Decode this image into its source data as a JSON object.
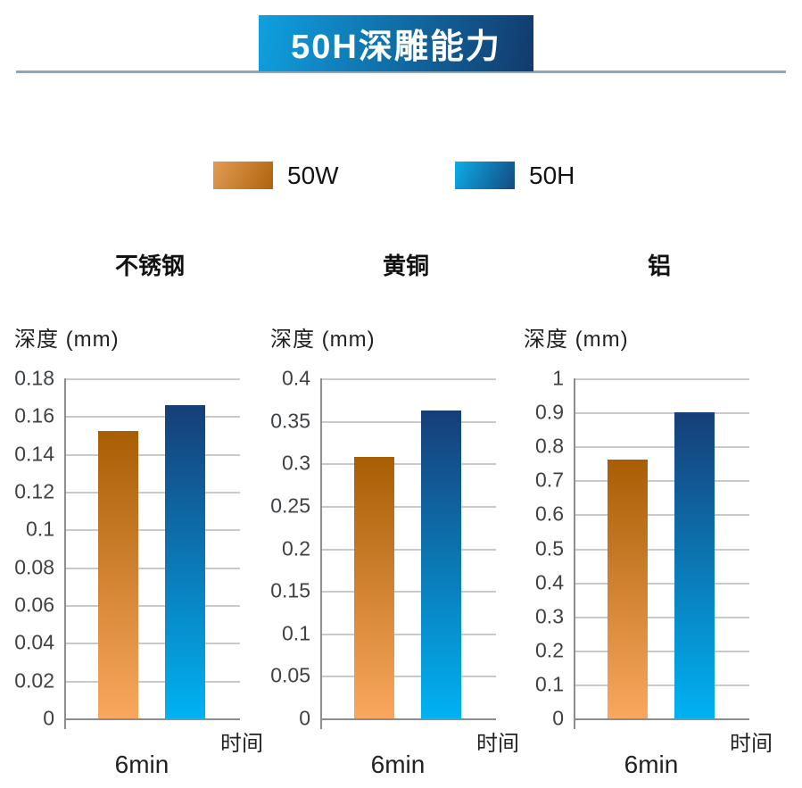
{
  "page": {
    "background": "#ffffff"
  },
  "header": {
    "title": "50H深雕能力"
  },
  "legend": {
    "position": "top",
    "items": [
      {
        "label": "50W",
        "swatch": "orange-gradient-swatch"
      },
      {
        "label": "50H",
        "swatch": "blue-gradient-swatch"
      }
    ]
  },
  "colors": {
    "banner_gradient": [
      "#0fa0e0",
      "#123a6c"
    ],
    "separator": "#87a7c2",
    "legend_orange": [
      "#e29c52",
      "#ad640f"
    ],
    "legend_blue": [
      "#0cade8",
      "#134a81"
    ],
    "bar_orange": [
      "#a85e04",
      "#f9a75e"
    ],
    "bar_blue": [
      "#163e78",
      "#00b2f2"
    ],
    "gridline": "#c9c9c9",
    "axis": "#8a8e92",
    "title_text": "#ffffff",
    "tick_text": "#3f4245"
  },
  "chart_data": [
    {
      "type": "bar",
      "title": "不锈钢",
      "ylabel": "深度 (mm)",
      "xlabel": "时间",
      "categories": [
        "6min"
      ],
      "series": [
        {
          "name": "50W",
          "values": [
            0.152
          ]
        },
        {
          "name": "50H",
          "values": [
            0.166
          ]
        }
      ],
      "ylim": [
        0,
        0.18
      ],
      "yticks": [
        "0.18",
        "0.16",
        "0.14",
        "0.12",
        "0.1",
        "0.08",
        "0.06",
        "0.04",
        "0.02",
        "0"
      ],
      "grid": true
    },
    {
      "type": "bar",
      "title": "黄铜",
      "ylabel": "深度 (mm)",
      "xlabel": "时间",
      "categories": [
        "6min"
      ],
      "series": [
        {
          "name": "50W",
          "values": [
            0.308
          ]
        },
        {
          "name": "50H",
          "values": [
            0.362
          ]
        }
      ],
      "ylim": [
        0,
        0.4
      ],
      "yticks": [
        "0.4",
        "0.35",
        "0.3",
        "0.25",
        "0.2",
        "0.15",
        "0.1",
        "0.05",
        "0"
      ],
      "grid": true
    },
    {
      "type": "bar",
      "title": "铝",
      "ylabel": "深度 (mm)",
      "xlabel": "时间",
      "categories": [
        "6min"
      ],
      "series": [
        {
          "name": "50W",
          "values": [
            0.76
          ]
        },
        {
          "name": "50H",
          "values": [
            0.9
          ]
        }
      ],
      "ylim": [
        0,
        1
      ],
      "yticks": [
        "1",
        "0.9",
        "0.8",
        "0.7",
        "0.6",
        "0.5",
        "0.4",
        "0.3",
        "0.2",
        "0.1",
        "0"
      ],
      "grid": true
    }
  ]
}
